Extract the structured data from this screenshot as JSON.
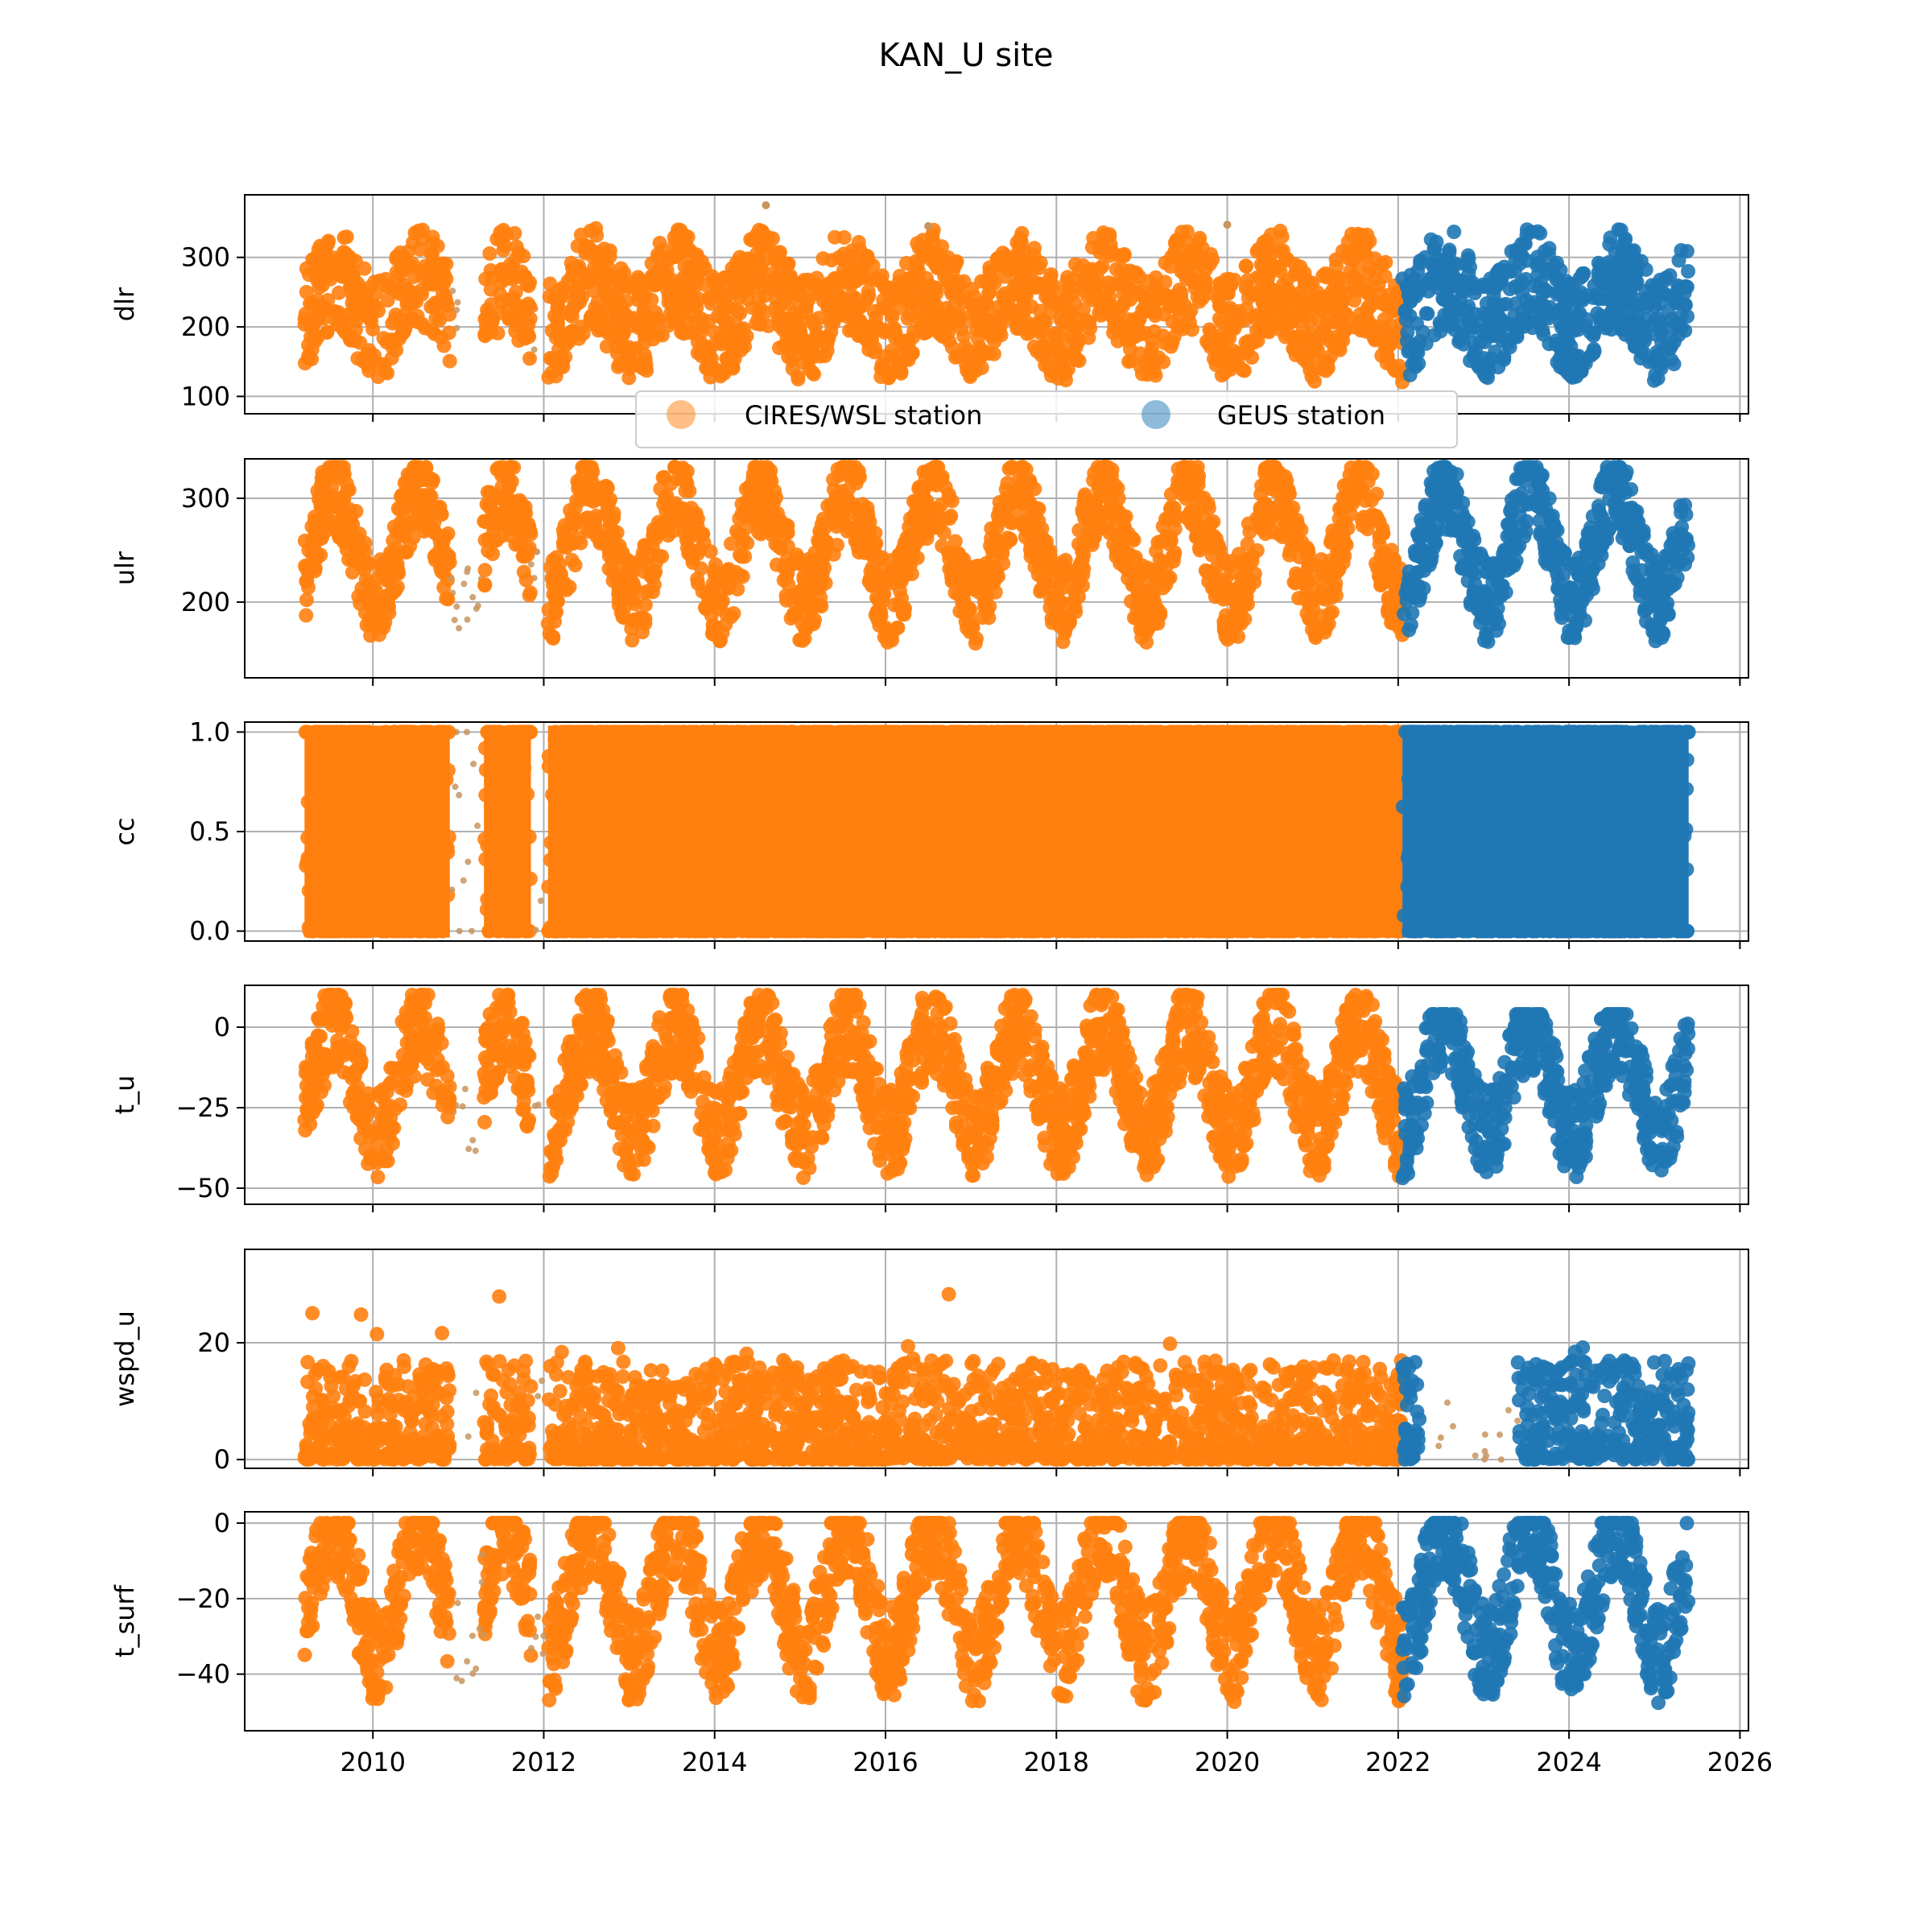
{
  "figure_title": "KAN_U site",
  "colors": {
    "cires": "#ff7f0e",
    "cires_sparse": "#c8955f",
    "geus": "#1f77b4",
    "grid": "#b0b0b0",
    "axis": "#000000"
  },
  "legend": {
    "entries": [
      {
        "label": "CIRES/WSL station",
        "color": "#ff7f0e"
      },
      {
        "label": "GEUS station",
        "color": "#1f77b4"
      }
    ],
    "placement": "lower-center of first panel"
  },
  "chart_data": [
    {
      "type": "scatter",
      "ylabel": "dlr",
      "xlim": [
        2008.5,
        2026.1
      ],
      "ylim": [
        75,
        390
      ],
      "yticks": [
        100,
        200,
        300
      ],
      "ytick_labels": [
        "100",
        "200",
        "300"
      ],
      "xticks": [
        2010,
        2012,
        2014,
        2016,
        2018,
        2020,
        2022,
        2024,
        2026
      ],
      "xtick_labels": [],
      "grid": true,
      "seasonal": {
        "low": 110,
        "high": 330,
        "amp_winter_low": 150,
        "summer_mean": 270,
        "winter_mean": 195,
        "spread": 75
      },
      "series": [
        {
          "name": "CIRES/WSL station",
          "x_range": [
            2009.2,
            2022.05
          ],
          "gaps": [
            [
              2010.9,
              2011.3
            ],
            [
              2011.85,
              2012.05
            ]
          ],
          "y_min": 90,
          "y_max": 375,
          "outliers": [
            [
              2014.6,
              375
            ],
            [
              2016.5,
              345
            ],
            [
              2020.0,
              347
            ]
          ]
        },
        {
          "name": "GEUS station",
          "x_range": [
            2022.05,
            2025.4
          ],
          "gaps": [],
          "y_min": 95,
          "y_max": 340
        }
      ]
    },
    {
      "type": "scatter",
      "ylabel": "ulr",
      "xlim": [
        2008.5,
        2026.1
      ],
      "ylim": [
        127,
        338
      ],
      "yticks": [
        200,
        300
      ],
      "ytick_labels": [
        "200",
        "300"
      ],
      "xticks": [
        2010,
        2012,
        2014,
        2016,
        2018,
        2020,
        2022,
        2024,
        2026
      ],
      "xtick_labels": [],
      "grid": true,
      "seasonal": {
        "summer_mean": 305,
        "winter_mean": 200,
        "spread": 40
      },
      "series": [
        {
          "name": "CIRES/WSL station",
          "x_range": [
            2009.2,
            2022.05
          ],
          "gaps": [
            [
              2010.9,
              2011.3
            ],
            [
              2011.85,
              2012.05
            ]
          ],
          "y_min": 133,
          "y_max": 330
        },
        {
          "name": "GEUS station",
          "x_range": [
            2022.05,
            2025.4
          ],
          "gaps": [],
          "y_min": 140,
          "y_max": 330
        }
      ]
    },
    {
      "type": "scatter",
      "ylabel": "cc",
      "xlim": [
        2008.5,
        2026.1
      ],
      "ylim": [
        -0.05,
        1.05
      ],
      "yticks": [
        0.0,
        0.5,
        1.0
      ],
      "ytick_labels": [
        "0.0",
        "0.5",
        "1.0"
      ],
      "xticks": [
        2010,
        2012,
        2014,
        2016,
        2018,
        2020,
        2022,
        2024,
        2026
      ],
      "xtick_labels": [],
      "grid": true,
      "series": [
        {
          "name": "CIRES/WSL station",
          "x_range": [
            2009.2,
            2022.05
          ],
          "gaps": [
            [
              2010.9,
              2011.3
            ],
            [
              2011.85,
              2012.05
            ]
          ],
          "y_min": 0.0,
          "y_max": 1.0
        },
        {
          "name": "GEUS station",
          "x_range": [
            2022.05,
            2025.4
          ],
          "gaps": [],
          "y_min": 0.0,
          "y_max": 1.0
        }
      ]
    },
    {
      "type": "scatter",
      "ylabel": "t_u",
      "xlim": [
        2008.5,
        2026.1
      ],
      "ylim": [
        -55,
        13
      ],
      "yticks": [
        -50,
        -25,
        0
      ],
      "ytick_labels": [
        "−50",
        "−25",
        "0"
      ],
      "xticks": [
        2010,
        2012,
        2014,
        2016,
        2018,
        2020,
        2022,
        2024,
        2026
      ],
      "xtick_labels": [],
      "grid": true,
      "seasonal": {
        "summer_mean": 0,
        "winter_mean": -33,
        "spread": 14
      },
      "series": [
        {
          "name": "CIRES/WSL station",
          "x_range": [
            2009.2,
            2022.05
          ],
          "gaps": [
            [
              2010.9,
              2011.3
            ],
            [
              2011.85,
              2012.05
            ]
          ],
          "y_min": -53,
          "y_max": 10
        },
        {
          "name": "GEUS station",
          "x_range": [
            2022.05,
            2025.4
          ],
          "gaps": [],
          "y_min": -50,
          "y_max": 4
        }
      ]
    },
    {
      "type": "scatter",
      "ylabel": "wspd_u",
      "xlim": [
        2008.5,
        2026.1
      ],
      "ylim": [
        -1.5,
        36
      ],
      "yticks": [
        0,
        20
      ],
      "ytick_labels": [
        "0",
        "20"
      ],
      "xticks": [
        2010,
        2012,
        2014,
        2016,
        2018,
        2020,
        2022,
        2024,
        2026
      ],
      "xtick_labels": [],
      "grid": true,
      "series": [
        {
          "name": "CIRES/WSL station",
          "x_range": [
            2009.2,
            2022.05
          ],
          "gaps": [
            [
              2010.9,
              2011.3
            ],
            [
              2011.85,
              2012.05
            ]
          ],
          "y_min": 0,
          "y_max": 34
        },
        {
          "name": "GEUS station",
          "x_range": [
            2022.05,
            2025.4
          ],
          "gaps": [
            [
              2022.25,
              2023.4
            ]
          ],
          "y_min": 0,
          "y_max": 31
        }
      ]
    },
    {
      "type": "scatter",
      "ylabel": "t_surf",
      "xlim": [
        2008.5,
        2026.1
      ],
      "ylim": [
        -55,
        3
      ],
      "yticks": [
        -40,
        -20,
        0
      ],
      "ytick_labels": [
        "−40",
        "−20",
        "0"
      ],
      "xticks": [
        2010,
        2012,
        2014,
        2016,
        2018,
        2020,
        2022,
        2024,
        2026
      ],
      "xtick_labels": [
        "2010",
        "2012",
        "2014",
        "2016",
        "2018",
        "2020",
        "2022",
        "2024",
        "2026"
      ],
      "grid": true,
      "seasonal": {
        "summer_mean": -1,
        "winter_mean": -35,
        "spread": 13
      },
      "series": [
        {
          "name": "CIRES/WSL station",
          "x_range": [
            2009.2,
            2022.05
          ],
          "gaps": [
            [
              2010.9,
              2011.3
            ],
            [
              2011.85,
              2012.05
            ]
          ],
          "y_min": -52,
          "y_max": 0
        },
        {
          "name": "GEUS station",
          "x_range": [
            2022.05,
            2025.4
          ],
          "gaps": [],
          "y_min": -50,
          "y_max": 0
        }
      ]
    }
  ]
}
